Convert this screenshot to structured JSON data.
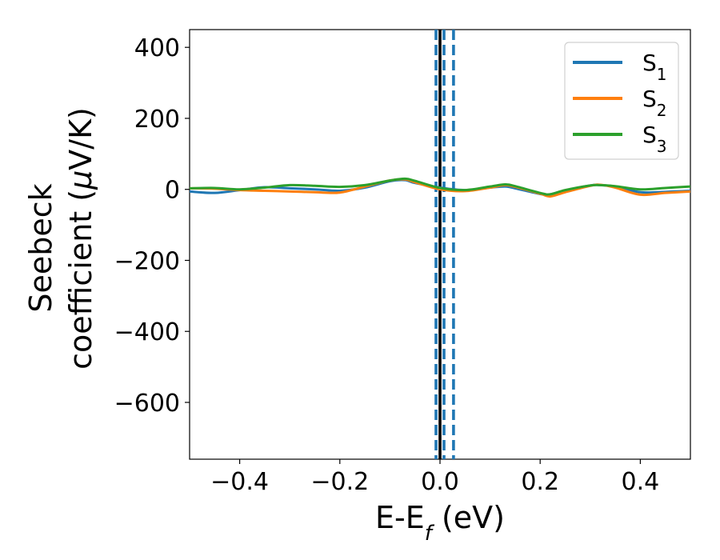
{
  "chart_data": {
    "type": "line",
    "xlabel": {
      "base": "E-E",
      "sub": "f",
      "tail": " (eV)"
    },
    "ylabel": {
      "line1": "Seebeck",
      "line2_prefix": "coefficient  (",
      "line2_mu": "μ",
      "line2_suffix": "V/K)"
    },
    "xlim": [
      -0.5,
      0.5
    ],
    "ylim": [
      -760,
      450
    ],
    "xticks": [
      -0.4,
      -0.2,
      0.0,
      0.2,
      0.4
    ],
    "xtick_labels": [
      "−0.4",
      "−0.2",
      "0.0",
      "0.2",
      "0.4"
    ],
    "yticks": [
      400,
      200,
      0,
      -200,
      -400,
      -600
    ],
    "ytick_labels": [
      "400",
      "200",
      "0",
      "−200",
      "−400",
      "−600"
    ],
    "grid": false,
    "legend_position": "top-right",
    "vertical_lines": [
      {
        "x": 0.0,
        "color": "#000000",
        "style": "solid"
      },
      {
        "x": -0.008,
        "color": "#1f77b4",
        "style": "dashed"
      },
      {
        "x": 0.008,
        "color": "#1f77b4",
        "style": "dashed"
      },
      {
        "x": 0.027,
        "color": "#1f77b4",
        "style": "dashed"
      }
    ],
    "x": [
      -0.5,
      -0.45,
      -0.4,
      -0.35,
      -0.3,
      -0.25,
      -0.2,
      -0.15,
      -0.1,
      -0.07,
      -0.05,
      0.0,
      0.05,
      0.1,
      0.13,
      0.15,
      0.2,
      0.22,
      0.25,
      0.3,
      0.32,
      0.35,
      0.4,
      0.45,
      0.5
    ],
    "series": [
      {
        "name": "S",
        "sub": "1",
        "color": "#1f77b4",
        "values": [
          -6,
          -10,
          -2,
          6,
          3,
          0,
          -4,
          5,
          23,
          26,
          18,
          5,
          -2,
          5,
          8,
          3,
          -13,
          -14,
          -3,
          11,
          12,
          8,
          -8,
          -7,
          -4
        ]
      },
      {
        "name": "S",
        "sub": "2",
        "color": "#ff7f0e",
        "values": [
          3,
          2,
          -2,
          -4,
          -6,
          -8,
          -9,
          8,
          25,
          28,
          20,
          0,
          -5,
          5,
          12,
          7,
          -12,
          -20,
          -8,
          10,
          13,
          5,
          -15,
          -10,
          -6
        ]
      },
      {
        "name": "S",
        "sub": "3",
        "color": "#2ca02c",
        "values": [
          3,
          4,
          0,
          5,
          12,
          10,
          7,
          12,
          25,
          30,
          24,
          4,
          -2,
          8,
          14,
          9,
          -10,
          -14,
          -2,
          11,
          12,
          9,
          0,
          4,
          8
        ]
      }
    ]
  }
}
